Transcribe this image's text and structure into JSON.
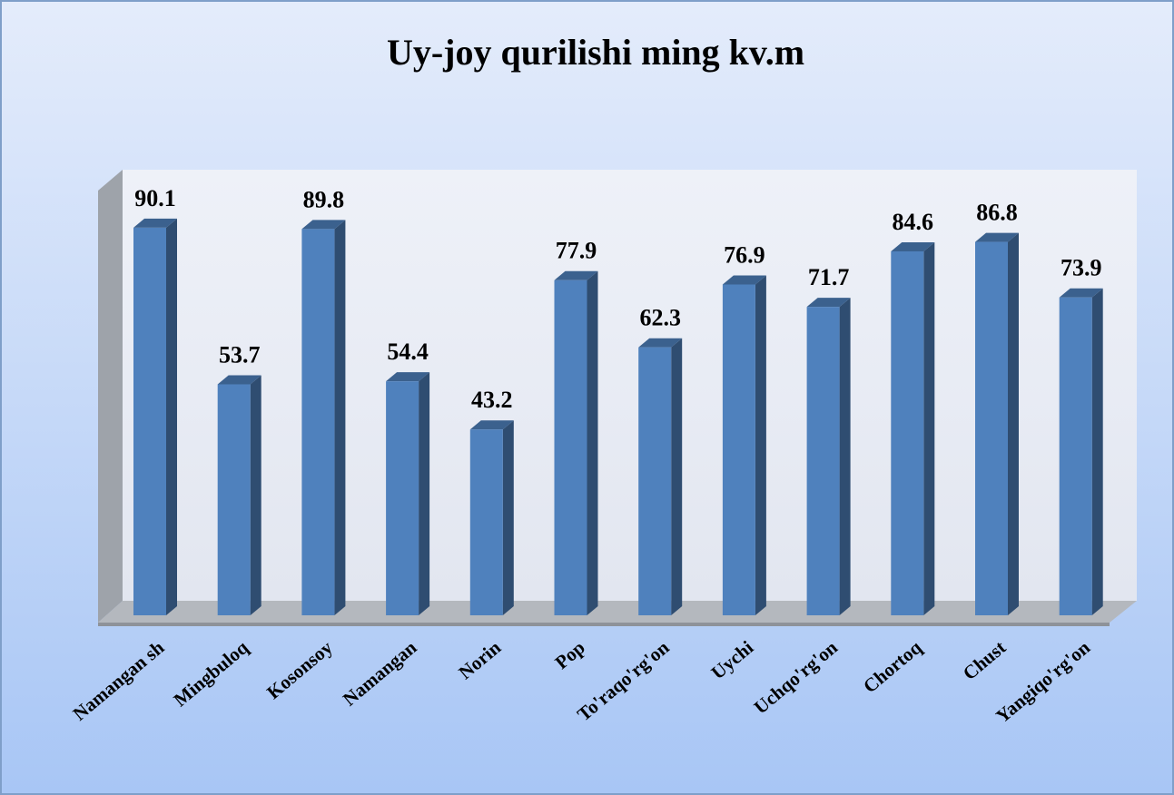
{
  "chart_data": {
    "type": "bar3d",
    "title": "Uy-joy qurilishi  ming kv.m",
    "categories": [
      "Namangan sh",
      "Mingbuloq",
      "Kosonsoy",
      "Namangan",
      "Norin",
      "Pop",
      "To'raqo'rg'on",
      "Uychi",
      "Uchqo'rg'on",
      "Chortoq",
      "Chust",
      "Yangiqo'rg'on"
    ],
    "values": [
      90.1,
      53.7,
      89.8,
      54.4,
      43.2,
      77.9,
      62.3,
      76.9,
      71.7,
      84.6,
      86.8,
      73.9
    ],
    "color": "#4f81bd"
  }
}
